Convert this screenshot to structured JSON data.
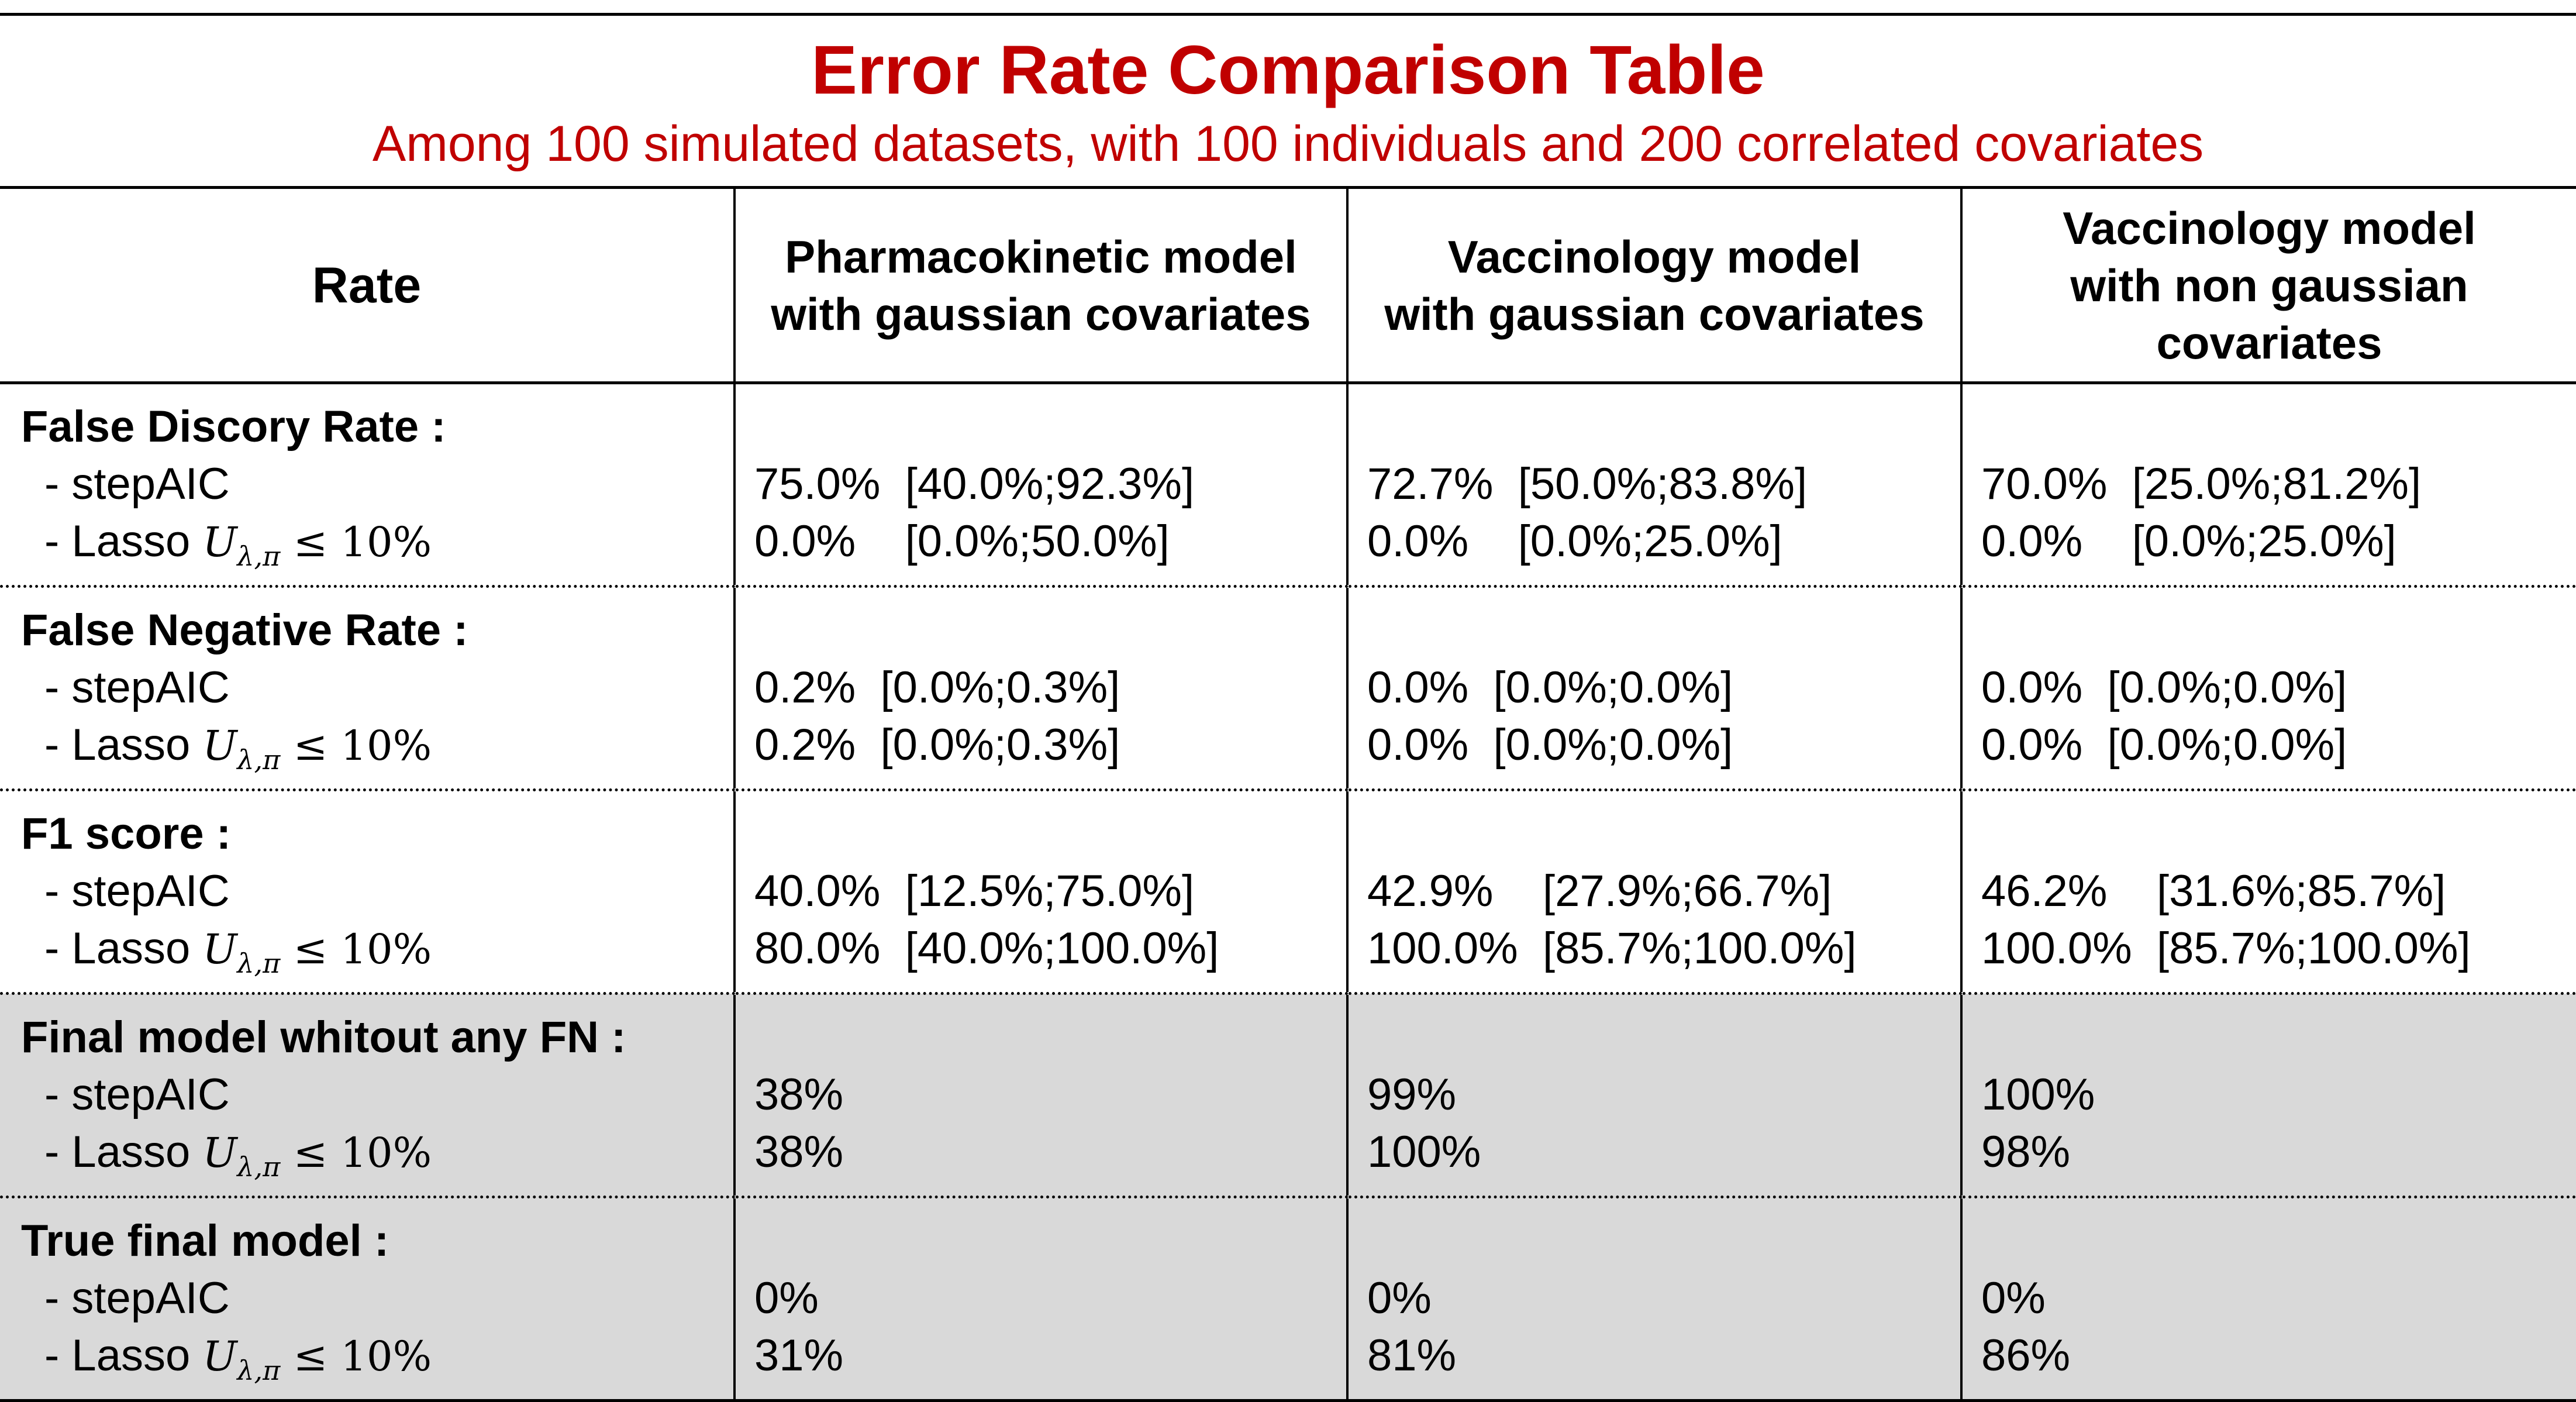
{
  "title": "Error Rate Comparison Table",
  "subtitle": "Among 100 simulated datasets, with 100 individuals and 200 correlated covariates",
  "columns": [
    "Rate",
    "Pharmacokinetic model with gaussian covariates",
    "Vaccinology model with gaussian covariates",
    "Vaccinology model with non gaussian covariates"
  ],
  "column_lines": [
    [
      "Rate"
    ],
    [
      "Pharmacokinetic model",
      "with gaussian covariates"
    ],
    [
      "Vaccinology model",
      "with gaussian covariates"
    ],
    [
      "Vaccinology model",
      "with non gaussian",
      "covariates"
    ]
  ],
  "lasso_label": {
    "prefix": "- Lasso ",
    "symbol": "U",
    "subscript": "λ,π",
    "condition": " ≤ 10%"
  },
  "rows": [
    {
      "label": "False Discory Rate :",
      "shaded": false,
      "methods": [
        "- stepAIC",
        "- Lasso"
      ],
      "values": [
        [
          "75.0%  [40.0%;92.3%]",
          "0.0%    [0.0%;50.0%]"
        ],
        [
          "72.7%  [50.0%;83.8%]",
          "0.0%    [0.0%;25.0%]"
        ],
        [
          "70.0%  [25.0%;81.2%]",
          "0.0%    [0.0%;25.0%]"
        ]
      ]
    },
    {
      "label": "False Negative Rate :",
      "shaded": false,
      "methods": [
        "- stepAIC",
        "- Lasso"
      ],
      "values": [
        [
          "0.2%  [0.0%;0.3%]",
          "0.2%  [0.0%;0.3%]"
        ],
        [
          "0.0%  [0.0%;0.0%]",
          "0.0%  [0.0%;0.0%]"
        ],
        [
          "0.0%  [0.0%;0.0%]",
          "0.0%  [0.0%;0.0%]"
        ]
      ]
    },
    {
      "label": "F1 score :",
      "shaded": false,
      "methods": [
        "- stepAIC",
        "- Lasso"
      ],
      "values": [
        [
          "40.0%  [12.5%;75.0%]",
          "80.0%  [40.0%;100.0%]"
        ],
        [
          "42.9%    [27.9%;66.7%]",
          "100.0%  [85.7%;100.0%]"
        ],
        [
          "46.2%    [31.6%;85.7%]",
          "100.0%  [85.7%;100.0%]"
        ]
      ]
    },
    {
      "label": "Final model whitout any FN :",
      "shaded": true,
      "methods": [
        "- stepAIC",
        "- Lasso"
      ],
      "values": [
        [
          "38%",
          "38%"
        ],
        [
          "99%",
          "100%"
        ],
        [
          "100%",
          "98%"
        ]
      ]
    },
    {
      "label": "True final model :",
      "shaded": true,
      "methods": [
        "- stepAIC",
        "- Lasso"
      ],
      "values": [
        [
          "0%",
          "31%"
        ],
        [
          "0%",
          "81%"
        ],
        [
          "0%",
          "86%"
        ]
      ]
    }
  ],
  "colors": {
    "title": "#c00000",
    "shade": "#d9d9d9",
    "rule": "#000000"
  }
}
